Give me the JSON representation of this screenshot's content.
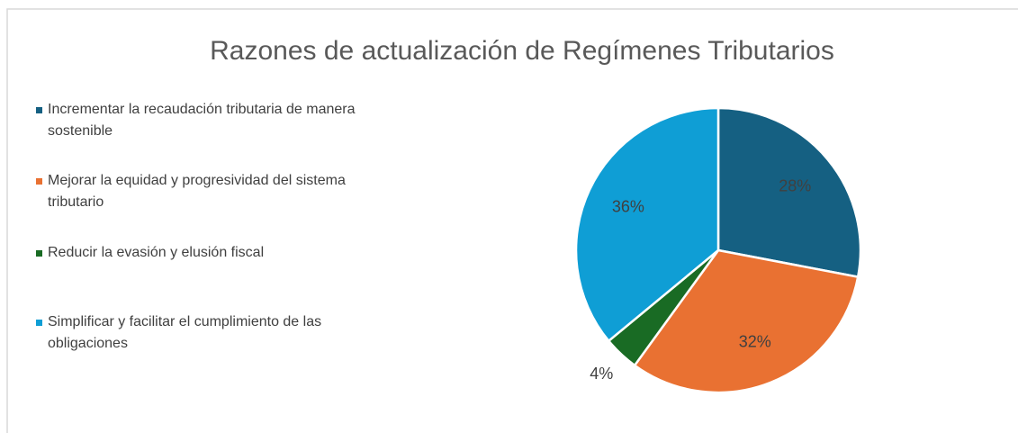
{
  "chart_data": {
    "type": "pie",
    "title": "Razones de actualización de Regímenes Tributarios",
    "categories": [
      "Incrementar la recaudación tributaria de manera sostenible",
      "Mejorar la equidad y progresividad del sistema tributario",
      "Reducir la evasión y elusión fiscal",
      "Simplificar y facilitar el cumplimiento de las obligaciones"
    ],
    "values": [
      28,
      32,
      4,
      36
    ],
    "value_labels": [
      "28%",
      "32%",
      "4%",
      "36%"
    ],
    "colors": [
      "#156082",
      "#e97132",
      "#196b24",
      "#0f9ed5"
    ],
    "legend": "left"
  }
}
